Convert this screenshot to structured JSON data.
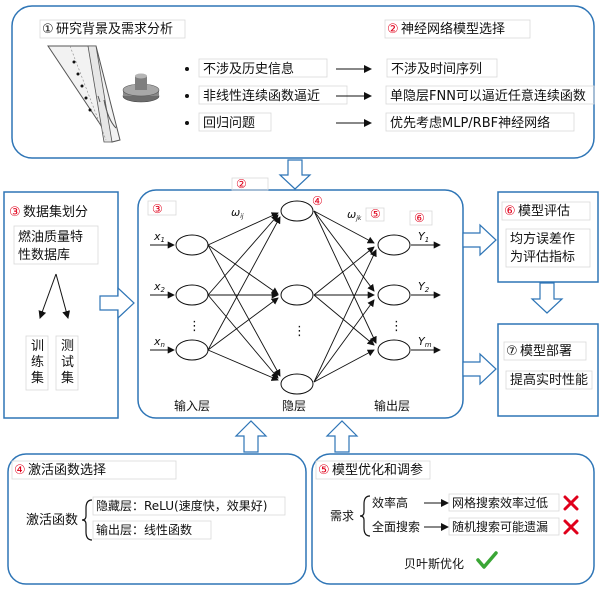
{
  "colors": {
    "box_border": "#2e75b6",
    "arrow_fill": "#ffffff",
    "arrow_stroke": "#2e75b6",
    "circled_num": "#e0001b",
    "cross": "#e0001b",
    "check": "#3aa635"
  },
  "top": {
    "research": {
      "num": "①",
      "title": "研究背景及需求分析"
    },
    "nn_select": {
      "num": "②",
      "title": "神经网络模型选择"
    },
    "rows": [
      {
        "left": "不涉及历史信息",
        "right": "不涉及时间序列"
      },
      {
        "left": "非线性连续函数逼近",
        "right": "单隐层FNN可以逼近任意连续函数"
      },
      {
        "left": "回归问题",
        "right": "优先考虑MLP/RBF神经网络"
      }
    ]
  },
  "dataset": {
    "num": "③",
    "title": "数据集划分",
    "db_line1": "燃油质量特",
    "db_line2": "性数据库",
    "train": [
      "训",
      "练",
      "集"
    ],
    "test": [
      "测",
      "试",
      "集"
    ]
  },
  "network": {
    "num_top": "②",
    "num_left": "③",
    "num_hidden": "④",
    "num_weight2": "⑤",
    "num_output": "⑥",
    "w1": "ω",
    "w1_sub": "ij",
    "w2": "ω",
    "w2_sub": "jk",
    "inputs": [
      {
        "base": "x",
        "sub": "1"
      },
      {
        "base": "x",
        "sub": "2"
      },
      {
        "base": "x",
        "sub": "n"
      }
    ],
    "outputs": [
      {
        "base": "Y",
        "sub": "1"
      },
      {
        "base": "Y",
        "sub": "2"
      },
      {
        "base": "Y",
        "sub": "m"
      }
    ],
    "dots": "⋮",
    "input_layer": "输入层",
    "hidden_layer": "隐层",
    "output_layer": "输出层"
  },
  "evaluation": {
    "num": "⑥",
    "title": "模型评估",
    "line1": "均方误差作",
    "line2": "为评估指标"
  },
  "deployment": {
    "num": "⑦",
    "title": "模型部署",
    "text": "提高实时性能"
  },
  "activation": {
    "num": "④",
    "title": "激活函数选择",
    "label": "激活函数",
    "hidden": "隐藏层：ReLU(速度快，效果好)",
    "output": "输出层：线性函数"
  },
  "optimization": {
    "num": "⑤",
    "title": "模型优化和调参",
    "need": "需求",
    "rows": [
      {
        "left": "效率高",
        "right": "网格搜索效率过低"
      },
      {
        "left": "全面搜索",
        "right": "随机搜索可能遗漏"
      }
    ],
    "bayes": "贝叶斯优化"
  }
}
